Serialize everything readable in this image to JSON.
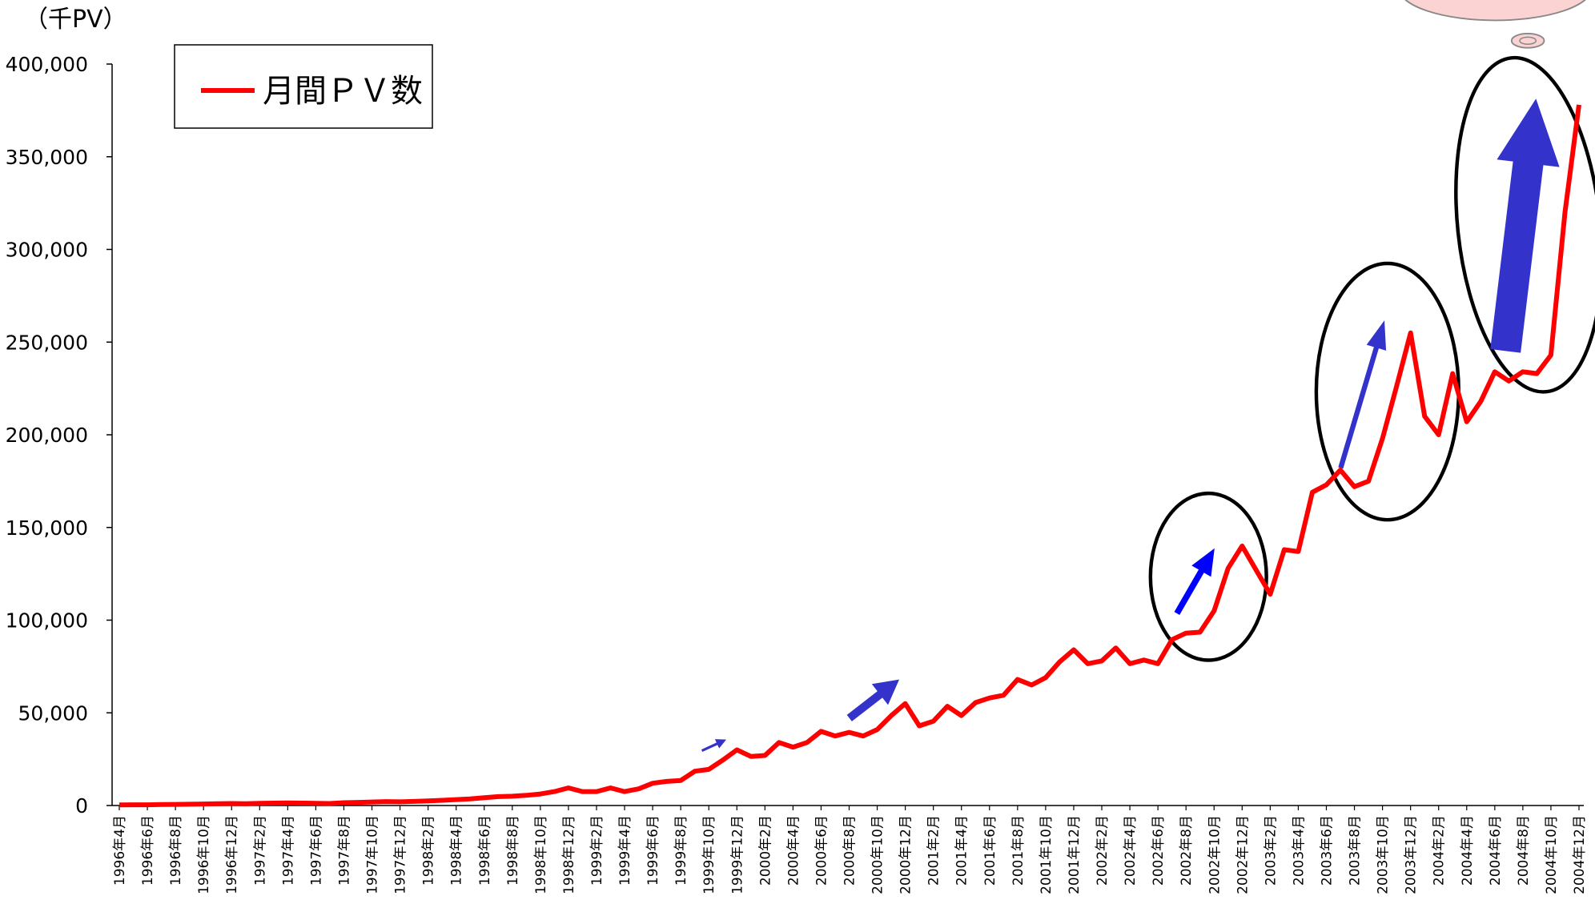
{
  "chart_data": {
    "type": "line",
    "unit_label": "（千PV）",
    "categories": [
      "1996年4月",
      null,
      "1996年6月",
      null,
      "1996年8月",
      null,
      "1996年10月",
      null,
      "1996年12月",
      null,
      "1997年2月",
      null,
      "1997年4月",
      null,
      "1997年6月",
      null,
      "1997年8月",
      null,
      "1997年10月",
      null,
      "1997年12月",
      null,
      "1998年2月",
      null,
      "1998年4月",
      null,
      "1998年6月",
      null,
      "1998年8月",
      null,
      "1998年10月",
      null,
      "1998年12月",
      null,
      "1999年2月",
      null,
      "1999年4月",
      null,
      "1999年6月",
      null,
      "1999年8月",
      null,
      "1999年10月",
      null,
      "1999年12月",
      null,
      "2000年2月",
      null,
      "2000年4月",
      null,
      "2000年6月",
      null,
      "2000年8月",
      null,
      "2000年10月",
      null,
      "2000年12月",
      null,
      "2001年2月",
      null,
      "2001年4月",
      null,
      "2001年6月",
      null,
      "2001年8月",
      null,
      "2001年10月",
      null,
      "2001年12月",
      null,
      "2002年2月",
      null,
      "2002年4月",
      null,
      "2002年6月",
      null,
      "2002年8月",
      null,
      "2002年10月",
      null,
      "2002年12月",
      null,
      "2003年2月",
      null,
      "2003年4月",
      null,
      "2003年6月",
      null,
      "2003年8月",
      null,
      "2003年10月",
      null,
      "2003年12月",
      null,
      "2004年2月",
      null,
      "2004年4月",
      null,
      "2004年6月",
      null,
      "2004年8月",
      null,
      "2004年10月",
      null,
      "2004年12月"
    ],
    "series": [
      {
        "name": "月間ＰＶ数",
        "color": "#ff0000",
        "values": [
          300,
          400,
          400,
          500,
          600,
          700,
          800,
          1000,
          1100,
          1000,
          1200,
          1300,
          1400,
          1300,
          1200,
          1100,
          1500,
          1700,
          1900,
          2100,
          2000,
          2200,
          2500,
          2800,
          3200,
          3600,
          4200,
          4800,
          5000,
          5500,
          6200,
          7500,
          9500,
          7500,
          7500,
          9500,
          7500,
          9000,
          12000,
          13000,
          13500,
          18500,
          19500,
          24500,
          30000,
          26500,
          27000,
          34000,
          31500,
          34000,
          40000,
          37500,
          39500,
          37500,
          41000,
          48500,
          55000,
          43000,
          45500,
          53500,
          48500,
          55500,
          58000,
          59500,
          68000,
          65000,
          69000,
          77500,
          84000,
          76500,
          78000,
          85000,
          76500,
          78500,
          76500,
          89500,
          93000,
          93500,
          105000,
          128000,
          140000,
          127000,
          114000,
          138000,
          137000,
          169000,
          173000,
          181000,
          172000,
          175000,
          198000,
          226000,
          255000,
          210000,
          200000,
          233000,
          207000,
          218000,
          234000,
          229000,
          234000,
          233000,
          243000,
          320000,
          378000
        ]
      }
    ],
    "ylim": [
      0,
      400000
    ],
    "yticks": [
      0,
      {
        "value": 50000,
        "label": "50,000"
      },
      {
        "value": 100000,
        "label": "100,000"
      },
      {
        "value": 150000,
        "label": "150,000"
      },
      {
        "value": 200000,
        "label": "200,000"
      },
      {
        "value": 250000,
        "label": "250,000"
      },
      {
        "value": 300000,
        "label": "300,000"
      },
      {
        "value": 350000,
        "label": "350,000"
      },
      {
        "value": 400000,
        "label": "400,000"
      }
    ],
    "grid": false,
    "legend": "upper-left"
  }
}
